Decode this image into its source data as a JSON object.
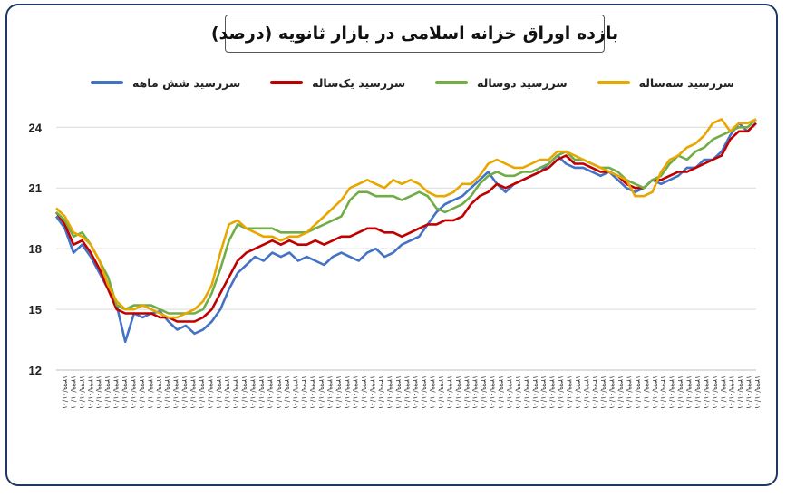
{
  "colors": {
    "six_month": "#4472C4",
    "one_year": "#C00000",
    "two_year": "#70AD47",
    "three_year": "#E8A700",
    "frame": "#1f3763",
    "grid": "#d9d9d9"
  },
  "chart_data": {
    "type": "line",
    "title": "بازده اوراق خزانه اسلامی در بازار ثانویه (درصد)",
    "xlabel": "",
    "ylabel": "",
    "ylim": [
      12,
      25
    ],
    "yticks": [
      12,
      15,
      18,
      21,
      24
    ],
    "grid": "horizontal",
    "legend_position": "top",
    "x_tick_count": 82,
    "x_tick_text": "۱۳۹۹/۰۱/۰۱",
    "series": [
      {
        "name": "سررسید  شش ماهه",
        "color_key": "six_month",
        "values": [
          19.6,
          19.0,
          17.8,
          18.2,
          17.6,
          16.8,
          16.0,
          15.2,
          13.4,
          14.8,
          14.6,
          14.8,
          14.9,
          14.4,
          14.0,
          14.2,
          13.8,
          14.0,
          14.4,
          15.0,
          16.0,
          16.8,
          17.2,
          17.6,
          17.4,
          17.8,
          17.6,
          17.8,
          17.4,
          17.6,
          17.4,
          17.2,
          17.6,
          17.8,
          17.6,
          17.4,
          17.8,
          18.0,
          17.6,
          17.8,
          18.2,
          18.4,
          18.6,
          19.2,
          19.8,
          20.2,
          20.4,
          20.6,
          21.0,
          21.4,
          21.8,
          21.2,
          20.8,
          21.2,
          21.4,
          21.6,
          21.8,
          22.2,
          22.6,
          22.2,
          22.0,
          22.0,
          21.8,
          21.6,
          21.8,
          21.4,
          21.0,
          20.8,
          21.0,
          21.4,
          21.2,
          21.4,
          21.6,
          22.0,
          22.0,
          22.4,
          22.4,
          22.8,
          23.6,
          24.2,
          23.8,
          24.2
        ]
      },
      {
        "name": "سررسید یک‌ساله",
        "color_key": "one_year",
        "values": [
          19.8,
          19.2,
          18.2,
          18.4,
          17.8,
          17.0,
          16.0,
          15.0,
          14.8,
          14.8,
          14.8,
          14.8,
          14.6,
          14.6,
          14.4,
          14.4,
          14.4,
          14.6,
          15.0,
          15.8,
          16.6,
          17.4,
          17.8,
          18.0,
          18.2,
          18.4,
          18.2,
          18.4,
          18.2,
          18.2,
          18.4,
          18.2,
          18.4,
          18.6,
          18.6,
          18.8,
          19.0,
          19.0,
          18.8,
          18.8,
          18.6,
          18.8,
          19.0,
          19.2,
          19.2,
          19.4,
          19.4,
          19.6,
          20.2,
          20.6,
          20.8,
          21.2,
          21.0,
          21.2,
          21.4,
          21.6,
          21.8,
          22.0,
          22.4,
          22.6,
          22.2,
          22.2,
          22.0,
          21.8,
          21.8,
          21.6,
          21.2,
          21.0,
          21.0,
          21.4,
          21.4,
          21.6,
          21.8,
          21.8,
          22.0,
          22.2,
          22.4,
          22.6,
          23.4,
          23.8,
          23.8,
          24.2
        ]
      },
      {
        "name": "سررسید دوساله",
        "color_key": "two_year",
        "values": [
          19.8,
          19.4,
          18.6,
          18.8,
          18.2,
          17.4,
          16.6,
          15.2,
          15.0,
          15.2,
          15.2,
          15.2,
          15.0,
          14.8,
          14.8,
          14.8,
          14.8,
          15.0,
          15.8,
          17.0,
          18.4,
          19.2,
          19.0,
          19.0,
          19.0,
          19.0,
          18.8,
          18.8,
          18.8,
          18.8,
          19.0,
          19.2,
          19.4,
          19.6,
          20.4,
          20.8,
          20.8,
          20.6,
          20.6,
          20.6,
          20.4,
          20.6,
          20.8,
          20.6,
          20.0,
          19.8,
          20.0,
          20.2,
          20.6,
          21.2,
          21.6,
          21.8,
          21.6,
          21.6,
          21.8,
          21.8,
          22.0,
          22.2,
          22.6,
          22.8,
          22.4,
          22.4,
          22.2,
          22.0,
          22.0,
          21.8,
          21.4,
          21.2,
          21.0,
          21.4,
          21.6,
          22.2,
          22.6,
          22.4,
          22.8,
          23.0,
          23.4,
          23.6,
          23.8,
          24.0,
          24.0,
          24.4
        ]
      },
      {
        "name": "سررسید سه‌ساله",
        "color_key": "three_year",
        "values": [
          20.0,
          19.6,
          18.8,
          18.6,
          18.2,
          17.4,
          16.2,
          15.4,
          15.0,
          15.0,
          15.2,
          15.0,
          14.8,
          14.6,
          14.6,
          14.8,
          15.0,
          15.4,
          16.2,
          17.8,
          19.2,
          19.4,
          19.0,
          18.8,
          18.6,
          18.6,
          18.4,
          18.6,
          18.6,
          18.8,
          19.2,
          19.6,
          20.0,
          20.4,
          21.0,
          21.2,
          21.4,
          21.2,
          21.0,
          21.4,
          21.2,
          21.4,
          21.2,
          20.8,
          20.6,
          20.6,
          20.8,
          21.2,
          21.2,
          21.6,
          22.2,
          22.4,
          22.2,
          22.0,
          22.0,
          22.2,
          22.4,
          22.4,
          22.8,
          22.8,
          22.6,
          22.4,
          22.2,
          22.0,
          21.8,
          21.6,
          21.4,
          20.6,
          20.6,
          20.8,
          21.8,
          22.4,
          22.6,
          23.0,
          23.2,
          23.6,
          24.2,
          24.4,
          23.8,
          24.2,
          24.2,
          24.4
        ]
      }
    ]
  }
}
